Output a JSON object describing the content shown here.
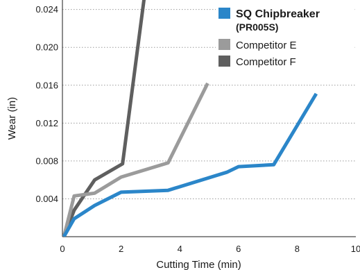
{
  "chart_data": {
    "type": "line",
    "title": "",
    "xlabel": "Cutting Time (min)",
    "ylabel": "Wear (in)",
    "xlim": [
      0,
      10
    ],
    "ylim": [
      0,
      0.025
    ],
    "x_ticks": [
      {
        "value": 0,
        "label": "0"
      },
      {
        "value": 2,
        "label": "2"
      },
      {
        "value": 4,
        "label": "4"
      },
      {
        "value": 6,
        "label": "6"
      },
      {
        "value": 8,
        "label": "8"
      },
      {
        "value": 10,
        "label": "10"
      }
    ],
    "y_ticks": [
      {
        "value": 0.004,
        "label": "0.004"
      },
      {
        "value": 0.008,
        "label": "0.008"
      },
      {
        "value": 0.012,
        "label": "0.012"
      },
      {
        "value": 0.016,
        "label": "0.016"
      },
      {
        "value": 0.02,
        "label": "0.020"
      },
      {
        "value": 0.024,
        "label": "0.024"
      }
    ],
    "grid": "horizontal-dotted",
    "legend_position": "top-right",
    "series": [
      {
        "name": "SQ Chipbreaker",
        "name_sub": "(PR005S)",
        "color": "#2b86c9",
        "points": [
          [
            0.05,
            0.0
          ],
          [
            0.4,
            0.0019
          ],
          [
            1.1,
            0.0033
          ],
          [
            2.0,
            0.0047
          ],
          [
            3.6,
            0.0049
          ],
          [
            5.6,
            0.0068
          ],
          [
            6.0,
            0.0074
          ],
          [
            7.2,
            0.0076
          ],
          [
            8.65,
            0.0151
          ]
        ]
      },
      {
        "name": "Competitor E",
        "color": "#9b9b9b",
        "points": [
          [
            0.05,
            0.0
          ],
          [
            0.4,
            0.0043
          ],
          [
            1.1,
            0.0046
          ],
          [
            2.0,
            0.0063
          ],
          [
            3.6,
            0.0078
          ],
          [
            4.95,
            0.0162
          ]
        ]
      },
      {
        "name": "Competitor F",
        "color": "#5f5f5f",
        "points": [
          [
            0.05,
            0.0
          ],
          [
            0.4,
            0.0028
          ],
          [
            1.1,
            0.006
          ],
          [
            2.05,
            0.0077
          ],
          [
            2.8,
            0.0255
          ]
        ]
      }
    ]
  }
}
